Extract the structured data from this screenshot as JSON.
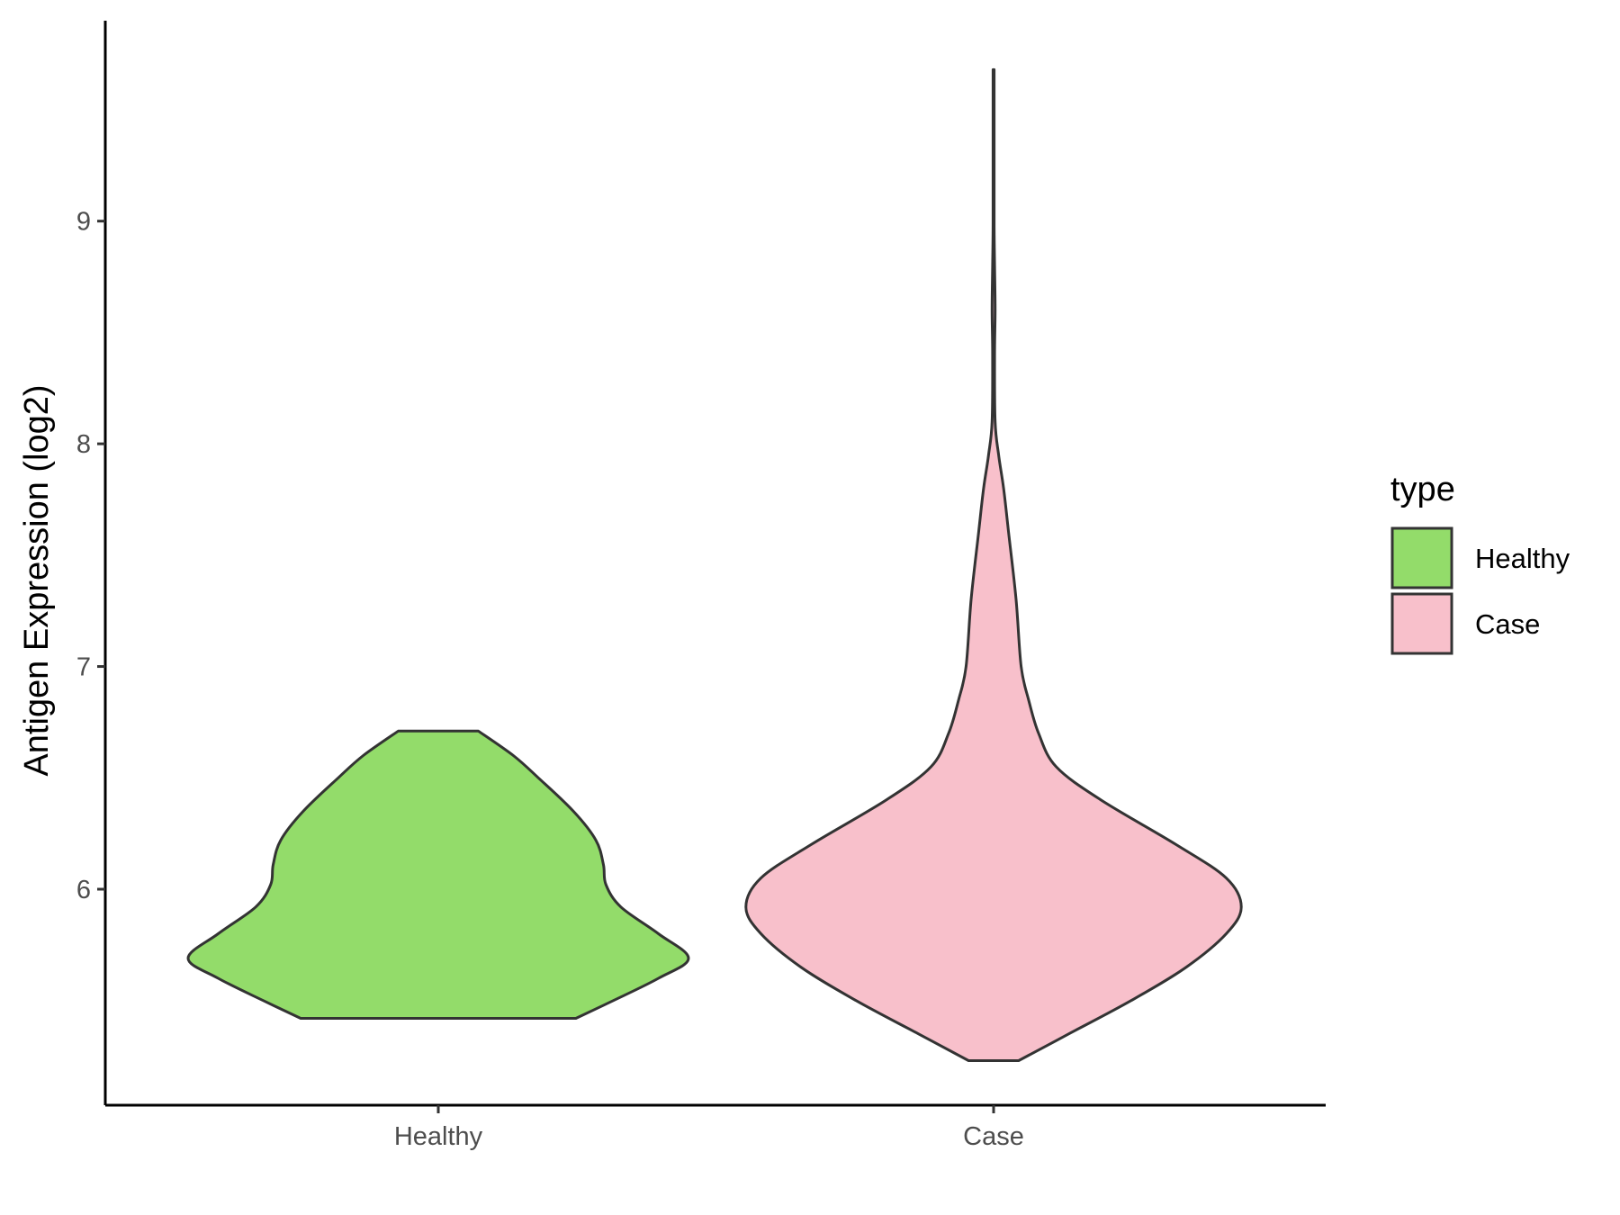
{
  "chart_data": {
    "type": "violin",
    "title": "",
    "xlabel": "",
    "ylabel": "Antigen Expression (log2)",
    "categories": [
      "Healthy",
      "Case"
    ],
    "ylim": [
      5.03,
      9.9
    ],
    "yticks": [
      6,
      7,
      8,
      9
    ],
    "grid": false,
    "legend": {
      "title": "type",
      "position": "right",
      "entries": [
        {
          "label": "Healthy",
          "color": "#93DC6A"
        },
        {
          "label": "Case",
          "color": "#F8C0CB"
        }
      ]
    },
    "series": [
      {
        "category": "Healthy",
        "color": "#93DC6A",
        "min": 5.42,
        "max": 6.71,
        "density": [
          [
            5.42,
            0.55
          ],
          [
            5.5,
            0.7
          ],
          [
            5.6,
            0.88
          ],
          [
            5.69,
            1.0
          ],
          [
            5.8,
            0.88
          ],
          [
            5.92,
            0.73
          ],
          [
            6.02,
            0.67
          ],
          [
            6.11,
            0.66
          ],
          [
            6.22,
            0.63
          ],
          [
            6.35,
            0.54
          ],
          [
            6.5,
            0.4
          ],
          [
            6.6,
            0.3
          ],
          [
            6.71,
            0.16
          ]
        ]
      },
      {
        "category": "Case",
        "color": "#F8C0CB",
        "min": 5.23,
        "max": 9.68,
        "density": [
          [
            5.23,
            0.1
          ],
          [
            5.35,
            0.3
          ],
          [
            5.5,
            0.55
          ],
          [
            5.65,
            0.77
          ],
          [
            5.8,
            0.93
          ],
          [
            5.92,
            0.99
          ],
          [
            6.05,
            0.93
          ],
          [
            6.2,
            0.73
          ],
          [
            6.4,
            0.43
          ],
          [
            6.55,
            0.25
          ],
          [
            6.7,
            0.18
          ],
          [
            6.85,
            0.14
          ],
          [
            7.0,
            0.11
          ],
          [
            7.3,
            0.09
          ],
          [
            7.6,
            0.06
          ],
          [
            7.8,
            0.04
          ],
          [
            7.95,
            0.02
          ],
          [
            8.1,
            0.006
          ],
          [
            8.4,
            0.004
          ],
          [
            8.6,
            0.006
          ],
          [
            8.8,
            0.004
          ],
          [
            9.0,
            0.002
          ],
          [
            9.3,
            0.002
          ],
          [
            9.68,
            0.002
          ]
        ]
      }
    ]
  }
}
